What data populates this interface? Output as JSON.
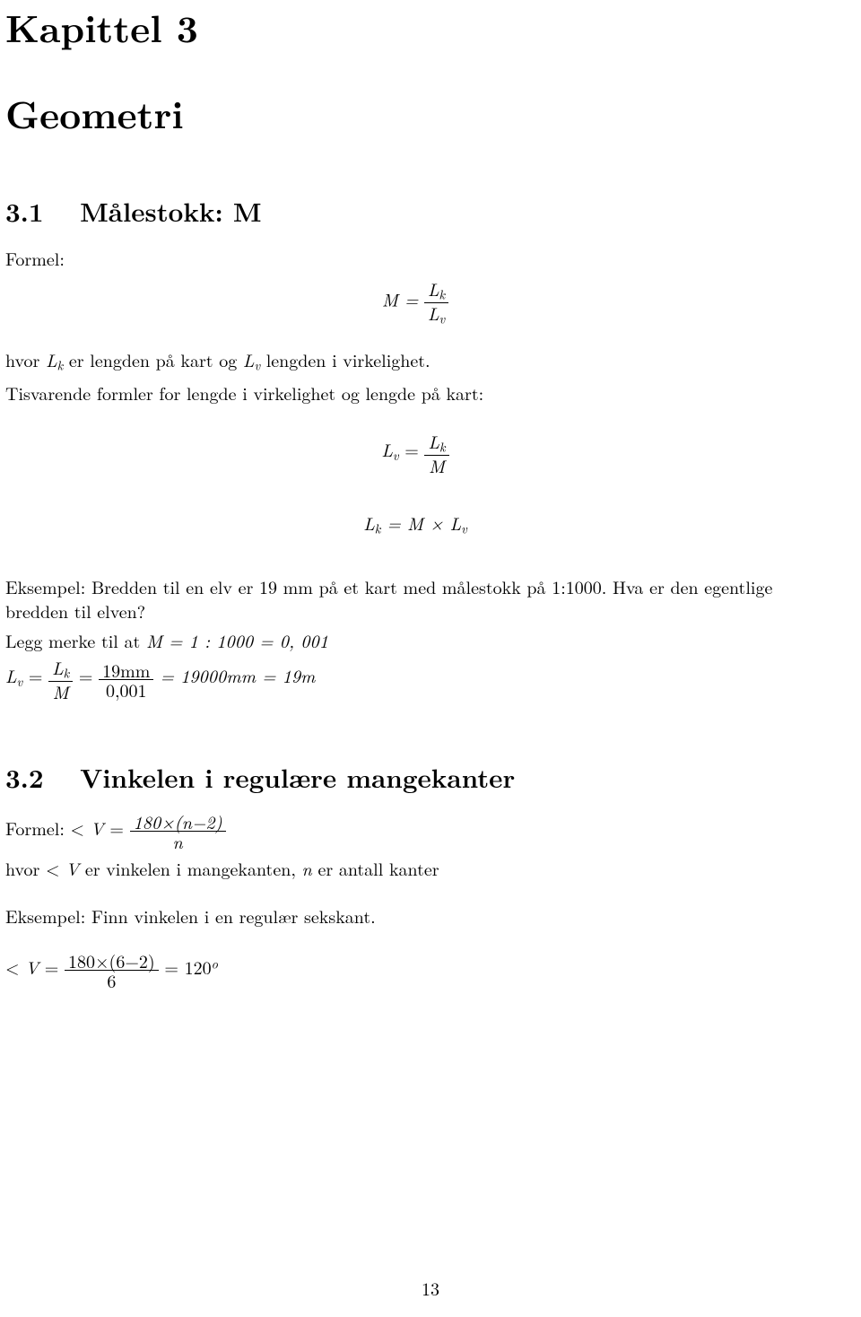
{
  "chapter": {
    "label": "Kapittel 3",
    "title": "Geometri"
  },
  "sec31": {
    "number": "3.1",
    "title": "Målestokk: M",
    "formel_label": "Formel:",
    "eq_M_left": "M =",
    "eq_M_num": "L",
    "eq_M_num_sub": "k",
    "eq_M_den": "L",
    "eq_M_den_sub": "v",
    "def_pre": "hvor ",
    "def_Lk": "L",
    "def_Lk_sub": "k",
    "def_mid1": " er lengden på kart og ",
    "def_Lv": "L",
    "def_Lv_sub": "v",
    "def_post": " lengden i virkelighet.",
    "tisvarende": "Tisvarende formler for lengde i virkelighet og lengde på kart:",
    "eq_Lv_left_a": "L",
    "eq_Lv_left_sub": "v",
    "eq_Lv_equals": " = ",
    "eq_Lv_num": "L",
    "eq_Lv_num_sub": "k",
    "eq_Lv_den": "M",
    "eq_Lk_a": "L",
    "eq_Lk_sub_a": "k",
    "eq_Lk_mid": " = M × L",
    "eq_Lk_sub_b": "v",
    "eksempel_line": "Eksempel: Bredden til en elv er 19 mm på et kart med målestokk på 1:1000. Hva er den egentlige bredden til elven?",
    "legg_line_pre": "Legg merke til at ",
    "legg_line_eq": "M = 1 : 1000 = 0, 001",
    "lv_pre": "L",
    "lv_sub": "v",
    "lv_eq": " = ",
    "lv_frac1_num_a": "L",
    "lv_frac1_num_sub": "k",
    "lv_frac1_den": "M",
    "lv_mid_eq": " = ",
    "lv_frac2_num": "19mm",
    "lv_frac2_den": "0,001",
    "lv_post": " = 19000mm = 19m"
  },
  "sec32": {
    "number": "3.2",
    "title": "Vinkelen i regulære mangekanter",
    "formel_pre": "Formel: < ",
    "formel_V": "V",
    "formel_eq": " = ",
    "formel_frac_num": "180×(n−2)",
    "formel_frac_den": "n",
    "hvor_pre": "hvor < ",
    "hvor_V": "V",
    "hvor_mid": " er vinkelen i mangekanten, ",
    "hvor_n": "n",
    "hvor_post": " er antall kanter",
    "eks_label": "Eksempel: Finn vinkelen i en regulær sekskant.",
    "ans_pre": "< ",
    "ans_V": "V",
    "ans_eq": " = ",
    "ans_frac_num": "180×(6−2)",
    "ans_frac_den": "6",
    "ans_post_a": " = 120",
    "ans_sup": "o"
  },
  "page_number": "13",
  "style": {
    "background_color": "#ffffff",
    "text_color": "#000000",
    "chapter_fontsize_pt": 31,
    "section_fontsize_pt": 22,
    "body_fontsize_pt": 15,
    "font_family": "Computer Modern / serif"
  }
}
